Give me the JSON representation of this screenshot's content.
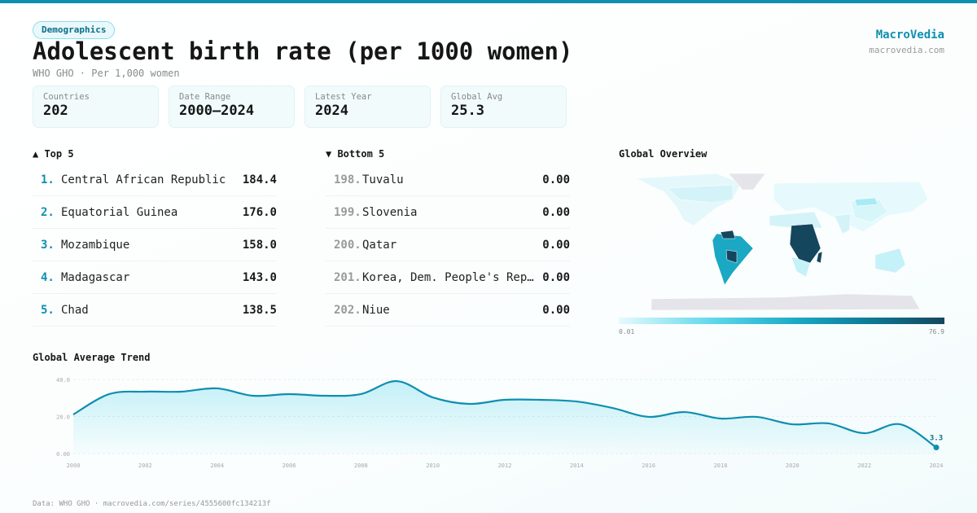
{
  "header": {
    "badge": "Demographics",
    "title": "Adolescent birth rate (per 1000 women)",
    "subtitle": "WHO GHO · Per 1,000 women",
    "brand": "MacroVedia",
    "brand_url": "macrovedia.com"
  },
  "stats": [
    {
      "label": "Countries",
      "value": "202"
    },
    {
      "label": "Date Range",
      "value": "2000–2024"
    },
    {
      "label": "Latest Year",
      "value": "2024"
    },
    {
      "label": "Global Avg",
      "value": "25.3"
    }
  ],
  "top": {
    "title": "▲ Top 5",
    "items": [
      {
        "rank": "1.",
        "name": "Central African Republic",
        "value": "184.4"
      },
      {
        "rank": "2.",
        "name": "Equatorial Guinea",
        "value": "176.0"
      },
      {
        "rank": "3.",
        "name": "Mozambique",
        "value": "158.0"
      },
      {
        "rank": "4.",
        "name": "Madagascar",
        "value": "143.0"
      },
      {
        "rank": "5.",
        "name": "Chad",
        "value": "138.5"
      }
    ]
  },
  "bottom": {
    "title": "▼ Bottom 5",
    "items": [
      {
        "rank": "198.",
        "name": "Tuvalu",
        "value": "0.00"
      },
      {
        "rank": "199.",
        "name": "Slovenia",
        "value": "0.00"
      },
      {
        "rank": "200.",
        "name": "Qatar",
        "value": "0.00"
      },
      {
        "rank": "201.",
        "name": "Korea, Dem. People's Republic",
        "value": "0.00"
      },
      {
        "rank": "202.",
        "name": "Niue",
        "value": "0.00"
      }
    ]
  },
  "map": {
    "title": "Global Overview",
    "legend_min": "0.01",
    "legend_max": "76.9"
  },
  "colors": {
    "accent": "#0e8fb0",
    "dark": "#14475e"
  },
  "chart_data": {
    "type": "area",
    "title": "Global Average Trend",
    "x": [
      2000,
      2001,
      2002,
      2003,
      2004,
      2005,
      2006,
      2007,
      2008,
      2009,
      2010,
      2011,
      2012,
      2013,
      2014,
      2015,
      2016,
      2017,
      2018,
      2019,
      2020,
      2021,
      2022,
      2023,
      2024
    ],
    "values": [
      21.1,
      32.1,
      33.4,
      33.4,
      35.2,
      31.2,
      32.1,
      31.2,
      32.1,
      39.1,
      30.3,
      26.8,
      29.0,
      29.0,
      28.1,
      24.6,
      19.8,
      22.4,
      18.9,
      19.8,
      15.8,
      16.3,
      11.0,
      15.8,
      3.3
    ],
    "ylim": [
      0,
      40
    ],
    "yticks": [
      "0.00",
      "20.0",
      "40.0"
    ],
    "xticks": [
      "2000",
      "2002",
      "2004",
      "2006",
      "2008",
      "2010",
      "2012",
      "2014",
      "2016",
      "2018",
      "2020",
      "2022",
      "2024"
    ],
    "last_label": "3.3",
    "grid": true
  },
  "footer": "Data: WHO GHO · macrovedia.com/series/4555600fc134213f"
}
